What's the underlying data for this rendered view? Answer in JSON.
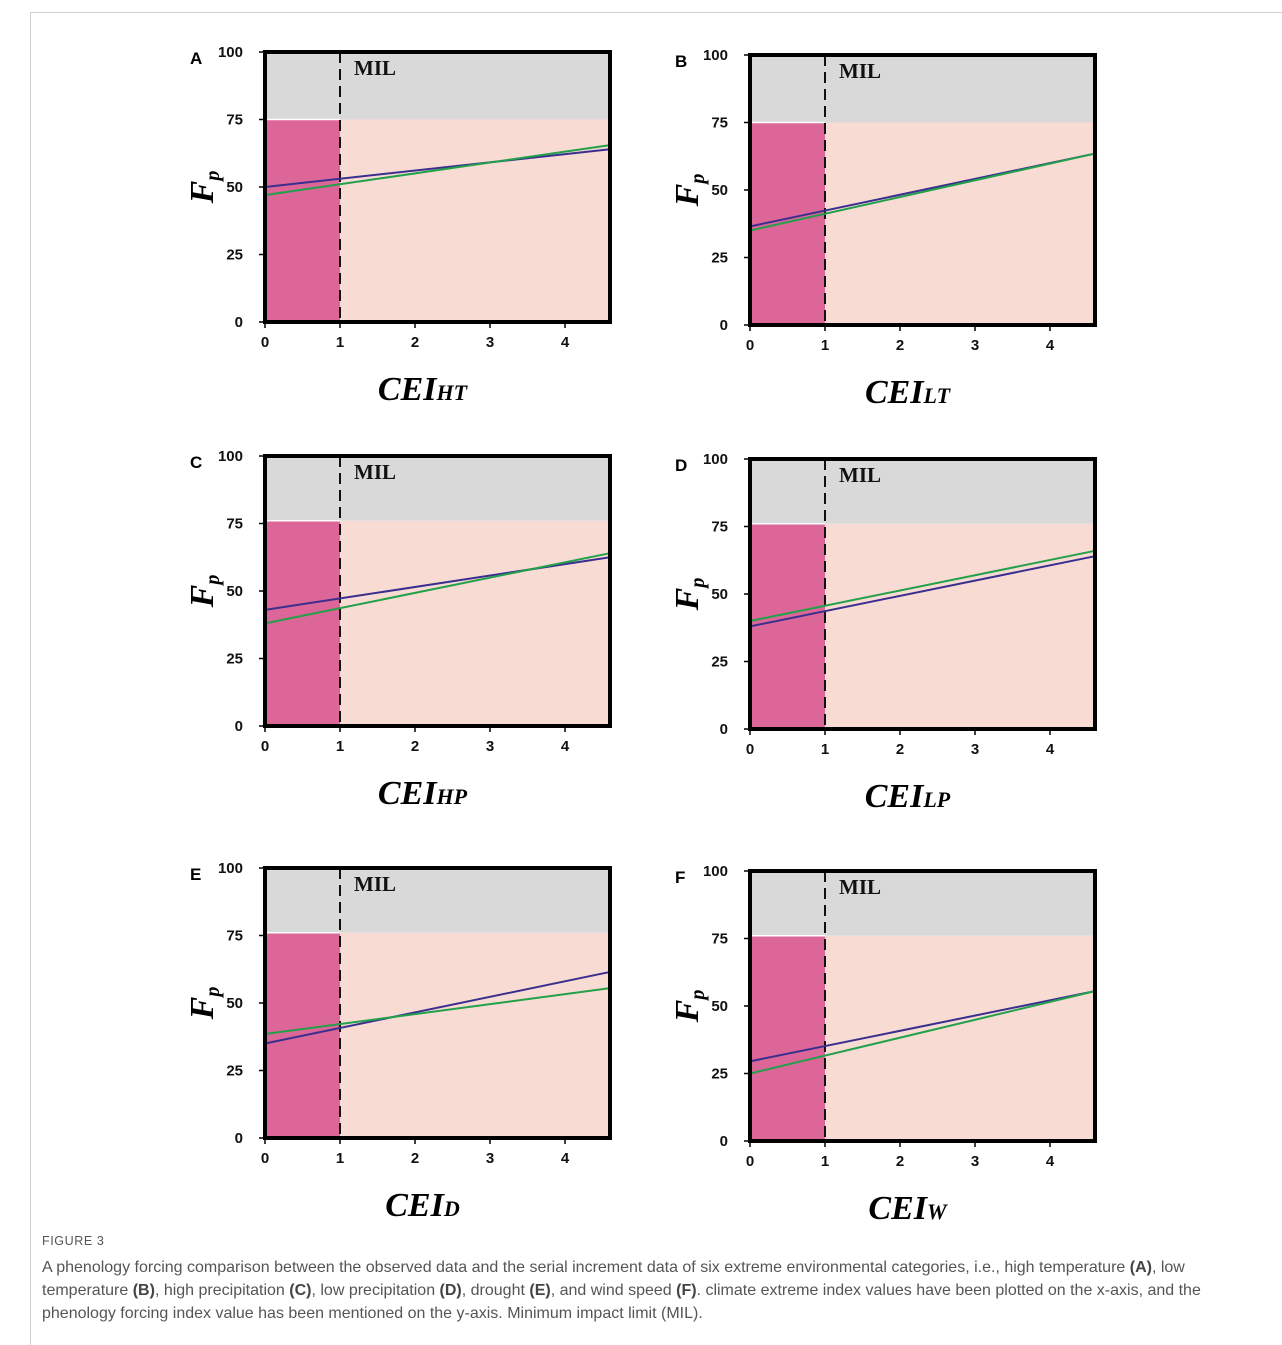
{
  "chart_data": [
    {
      "panel": "A",
      "type": "line",
      "ylabel": "F",
      "ylabel_sub": "p",
      "xlabel": "CEI",
      "xlabel_sub": "HT",
      "xlim": [
        0,
        4.6
      ],
      "ylim": [
        0,
        100
      ],
      "xticks": [
        "0",
        "1",
        "2",
        "3",
        "4"
      ],
      "yticks": [
        "0",
        "25",
        "50",
        "75",
        "100"
      ],
      "mil_label": "MIL",
      "mil_x": 1,
      "impact_level": 75,
      "colors": {
        "gray": "#d9d9d9",
        "pink": "#dd6699",
        "peach": "#f8dcd4",
        "blue": "#3a2f8f",
        "green": "#22a04a"
      },
      "series": [
        {
          "color": "#3a2f8f",
          "x": [
            0,
            4.6
          ],
          "y": [
            50,
            64
          ]
        },
        {
          "color": "#22a04a",
          "x": [
            0,
            4.6
          ],
          "y": [
            47,
            65.5
          ]
        }
      ]
    },
    {
      "panel": "B",
      "type": "line",
      "ylabel": "F",
      "ylabel_sub": "p",
      "xlabel": "CEI",
      "xlabel_sub": "LT",
      "xlim": [
        0,
        4.6
      ],
      "ylim": [
        0,
        100
      ],
      "xticks": [
        "0",
        "1",
        "2",
        "3",
        "4"
      ],
      "yticks": [
        "0",
        "25",
        "50",
        "75",
        "100"
      ],
      "mil_label": "MIL",
      "mil_x": 1,
      "impact_level": 75,
      "colors": {
        "gray": "#d9d9d9",
        "pink": "#dd6699",
        "peach": "#f8dcd4",
        "blue": "#3a2f8f",
        "green": "#22a04a"
      },
      "series": [
        {
          "color": "#3a2f8f",
          "x": [
            0,
            4.6
          ],
          "y": [
            36.5,
            63.5
          ]
        },
        {
          "color": "#22a04a",
          "x": [
            0,
            4.6
          ],
          "y": [
            35,
            63.5
          ]
        }
      ]
    },
    {
      "panel": "C",
      "type": "line",
      "ylabel": "F",
      "ylabel_sub": "p",
      "xlabel": "CEI",
      "xlabel_sub": "HP",
      "xlim": [
        0,
        4.6
      ],
      "ylim": [
        0,
        100
      ],
      "xticks": [
        "0",
        "1",
        "2",
        "3",
        "4"
      ],
      "yticks": [
        "0",
        "25",
        "50",
        "75",
        "100"
      ],
      "mil_label": "MIL",
      "mil_x": 1,
      "impact_level": 76,
      "colors": {
        "gray": "#d9d9d9",
        "pink": "#dd6699",
        "peach": "#f8dcd4",
        "blue": "#3a2f8f",
        "green": "#22a04a"
      },
      "series": [
        {
          "color": "#3a2f8f",
          "x": [
            0,
            4.6
          ],
          "y": [
            43,
            62.5
          ]
        },
        {
          "color": "#22a04a",
          "x": [
            0,
            4.6
          ],
          "y": [
            38,
            64
          ]
        }
      ]
    },
    {
      "panel": "D",
      "type": "line",
      "ylabel": "F",
      "ylabel_sub": "p",
      "xlabel": "CEI",
      "xlabel_sub": "LP",
      "xlim": [
        0,
        4.6
      ],
      "ylim": [
        0,
        100
      ],
      "xticks": [
        "0",
        "1",
        "2",
        "3",
        "4"
      ],
      "yticks": [
        "0",
        "25",
        "50",
        "75",
        "100"
      ],
      "mil_label": "MIL",
      "mil_x": 1,
      "impact_level": 76,
      "colors": {
        "gray": "#d9d9d9",
        "pink": "#dd6699",
        "peach": "#f8dcd4",
        "blue": "#3a2f8f",
        "green": "#22a04a"
      },
      "series": [
        {
          "color": "#3a2f8f",
          "x": [
            0,
            4.6
          ],
          "y": [
            38,
            64
          ]
        },
        {
          "color": "#22a04a",
          "x": [
            0,
            4.6
          ],
          "y": [
            40,
            66
          ]
        }
      ]
    },
    {
      "panel": "E",
      "type": "line",
      "ylabel": "F",
      "ylabel_sub": "p",
      "xlabel": "CEI",
      "xlabel_sub": "D",
      "xlim": [
        0,
        4.6
      ],
      "ylim": [
        0,
        100
      ],
      "xticks": [
        "0",
        "1",
        "2",
        "3",
        "4"
      ],
      "yticks": [
        "0",
        "25",
        "50",
        "75",
        "100"
      ],
      "mil_label": "MIL",
      "mil_x": 1,
      "impact_level": 76,
      "colors": {
        "gray": "#d9d9d9",
        "pink": "#dd6699",
        "peach": "#f8dcd4",
        "blue": "#3a2f8f",
        "green": "#22a04a"
      },
      "series": [
        {
          "color": "#3a2f8f",
          "x": [
            0,
            4.6
          ],
          "y": [
            35,
            61.5
          ]
        },
        {
          "color": "#22a04a",
          "x": [
            0,
            4.6
          ],
          "y": [
            38.5,
            55.5
          ]
        }
      ]
    },
    {
      "panel": "F",
      "type": "line",
      "ylabel": "F",
      "ylabel_sub": "p",
      "xlabel": "CEI",
      "xlabel_sub": "W",
      "xlim": [
        0,
        4.6
      ],
      "ylim": [
        0,
        100
      ],
      "xticks": [
        "0",
        "1",
        "2",
        "3",
        "4"
      ],
      "yticks": [
        "0",
        "25",
        "50",
        "75",
        "100"
      ],
      "mil_label": "MIL",
      "mil_x": 1,
      "impact_level": 76,
      "colors": {
        "gray": "#d9d9d9",
        "pink": "#dd6699",
        "peach": "#f8dcd4",
        "blue": "#3a2f8f",
        "green": "#22a04a"
      },
      "series": [
        {
          "color": "#3a2f8f",
          "x": [
            0,
            4.6
          ],
          "y": [
            29.5,
            55.5
          ]
        },
        {
          "color": "#22a04a",
          "x": [
            0,
            4.6
          ],
          "y": [
            25,
            55.5
          ]
        }
      ]
    }
  ],
  "caption": {
    "label": "FIGURE 3",
    "text_parts": [
      {
        "t": "A phenology forcing comparison between the observed data and the serial increment data of six extreme environmental categories, i.e., high temperature ",
        "b": false
      },
      {
        "t": "(A)",
        "b": true
      },
      {
        "t": ", low temperature ",
        "b": false
      },
      {
        "t": "(B)",
        "b": true
      },
      {
        "t": ", high precipitation ",
        "b": false
      },
      {
        "t": "(C)",
        "b": true
      },
      {
        "t": ", low precipitation ",
        "b": false
      },
      {
        "t": "(D)",
        "b": true
      },
      {
        "t": ", drought ",
        "b": false
      },
      {
        "t": "(E)",
        "b": true
      },
      {
        "t": ", and wind speed ",
        "b": false
      },
      {
        "t": "(F)",
        "b": true
      },
      {
        "t": ". climate extreme index values have been plotted on the x-axis, and the phenology forcing index value has been mentioned on the y-axis. Minimum impact limit (MIL).",
        "b": false
      }
    ]
  }
}
